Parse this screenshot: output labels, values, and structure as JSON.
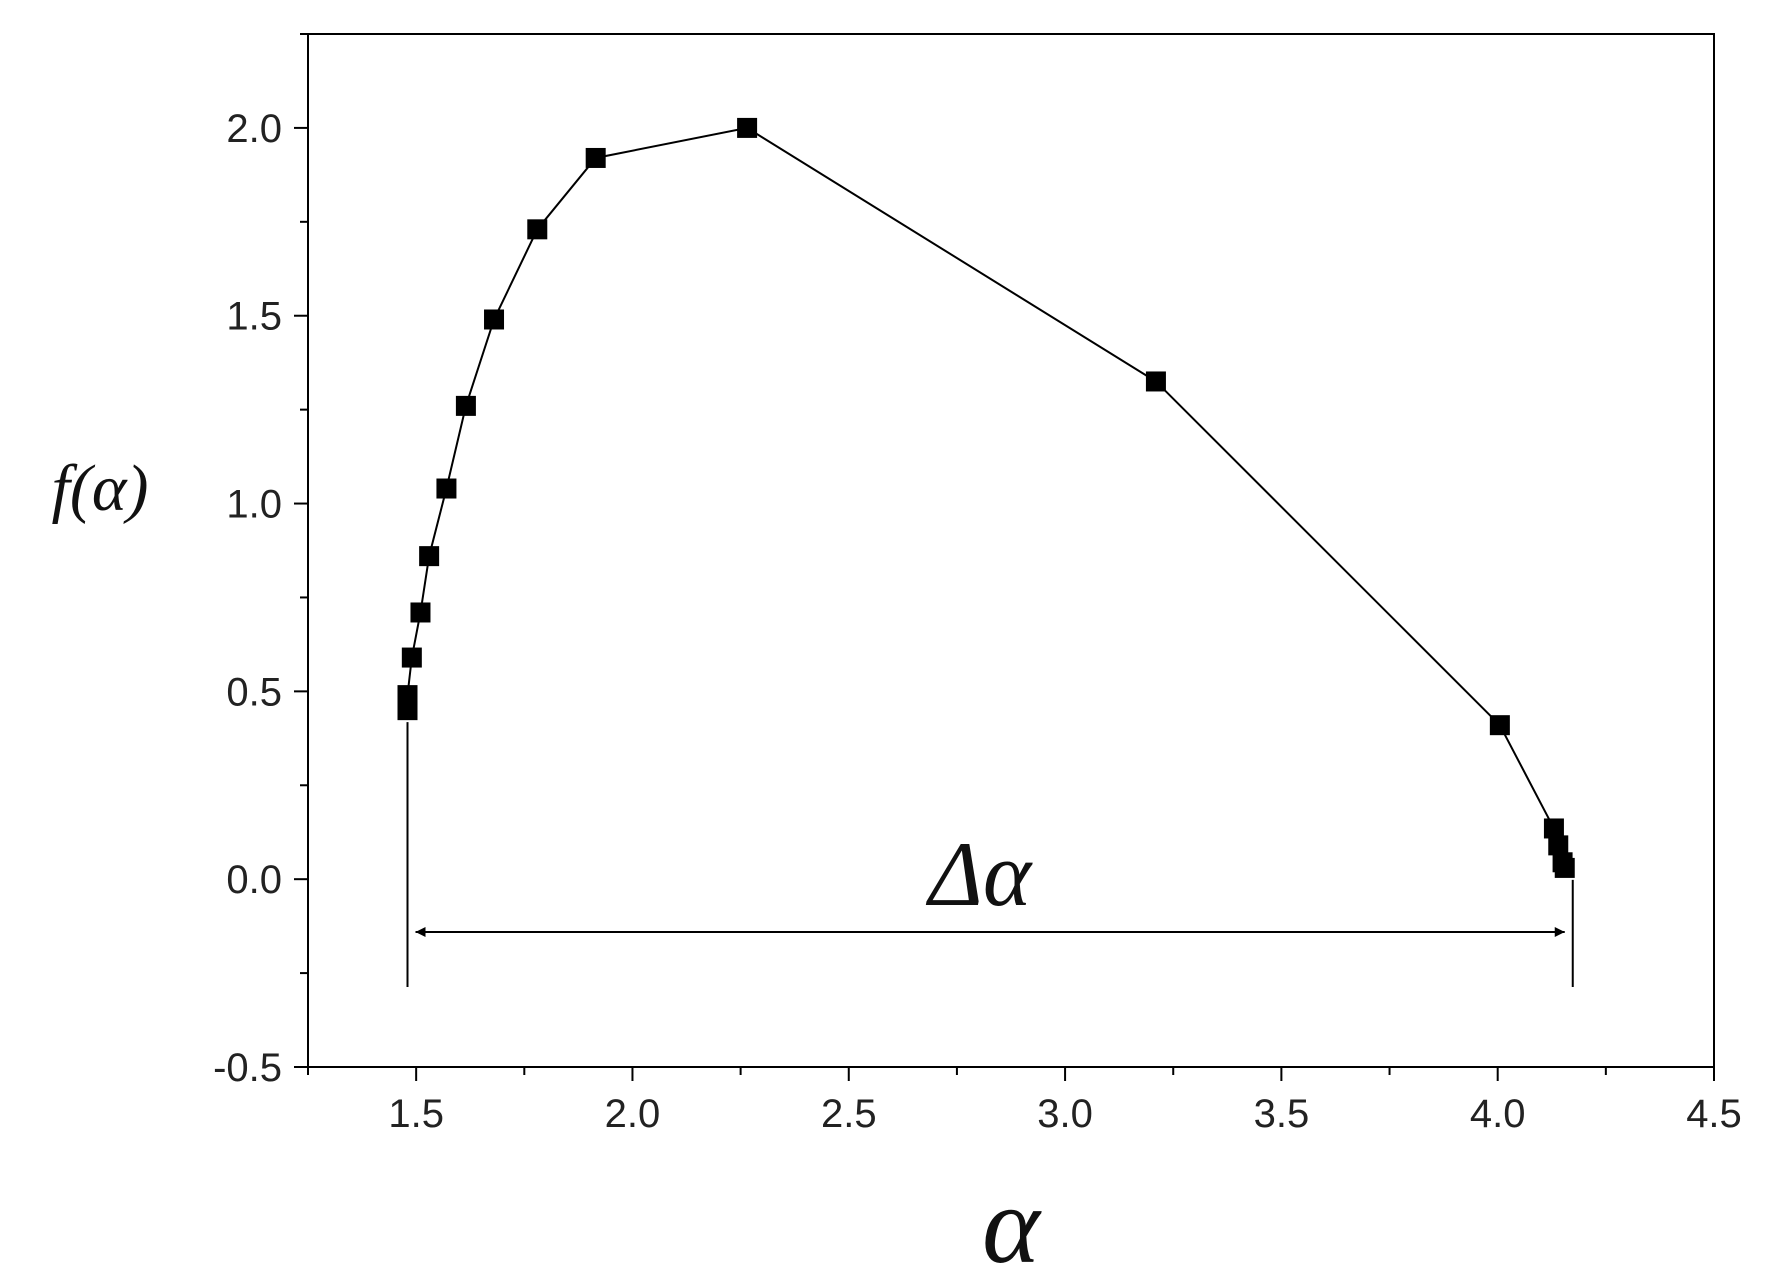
{
  "chart_data": {
    "type": "line",
    "x_label": "α",
    "y_label": "f(α)",
    "annotation": "Δα",
    "x": [
      1.48,
      1.48,
      1.49,
      1.51,
      1.53,
      1.57,
      1.615,
      1.68,
      1.78,
      1.915,
      2.265,
      3.21,
      4.005,
      4.13,
      4.14,
      4.15,
      4.155
    ],
    "series": [
      {
        "color": "#000000",
        "values": [
          0.45,
          0.49,
          0.59,
          0.71,
          0.86,
          1.04,
          1.26,
          1.49,
          1.73,
          1.92,
          2.0,
          1.325,
          0.41,
          0.135,
          0.09,
          0.045,
          0.03
        ]
      }
    ],
    "xlim": [
      1.25,
      4.5
    ],
    "xticks": [
      {
        "value": 1.5,
        "label": "1.5"
      },
      {
        "value": 2,
        "label": "2.0"
      },
      {
        "value": 2.5,
        "label": "2.5"
      },
      {
        "value": 3,
        "label": "3.0"
      },
      {
        "value": 3.5,
        "label": "3.5"
      },
      {
        "value": 4,
        "label": "4.0"
      },
      {
        "value": 4.5,
        "label": "4.5"
      }
    ],
    "xminorticks": [
      1.25,
      1.75,
      2.25,
      2.75,
      3.25,
      3.75,
      4.25
    ],
    "ylim": [
      -0.5,
      2.25
    ],
    "yticks": [
      {
        "value": -0.5,
        "label": "-0.5"
      },
      {
        "value": 0,
        "label": "0.0"
      },
      {
        "value": 0.5,
        "label": "0.5"
      },
      {
        "value": 1,
        "label": "1.0"
      },
      {
        "value": 1.5,
        "label": "1.5"
      },
      {
        "value": 2,
        "label": "2.0"
      }
    ],
    "yminorticks": [
      -0.25,
      0.25,
      0.75,
      1.25,
      1.75,
      2.25
    ]
  }
}
